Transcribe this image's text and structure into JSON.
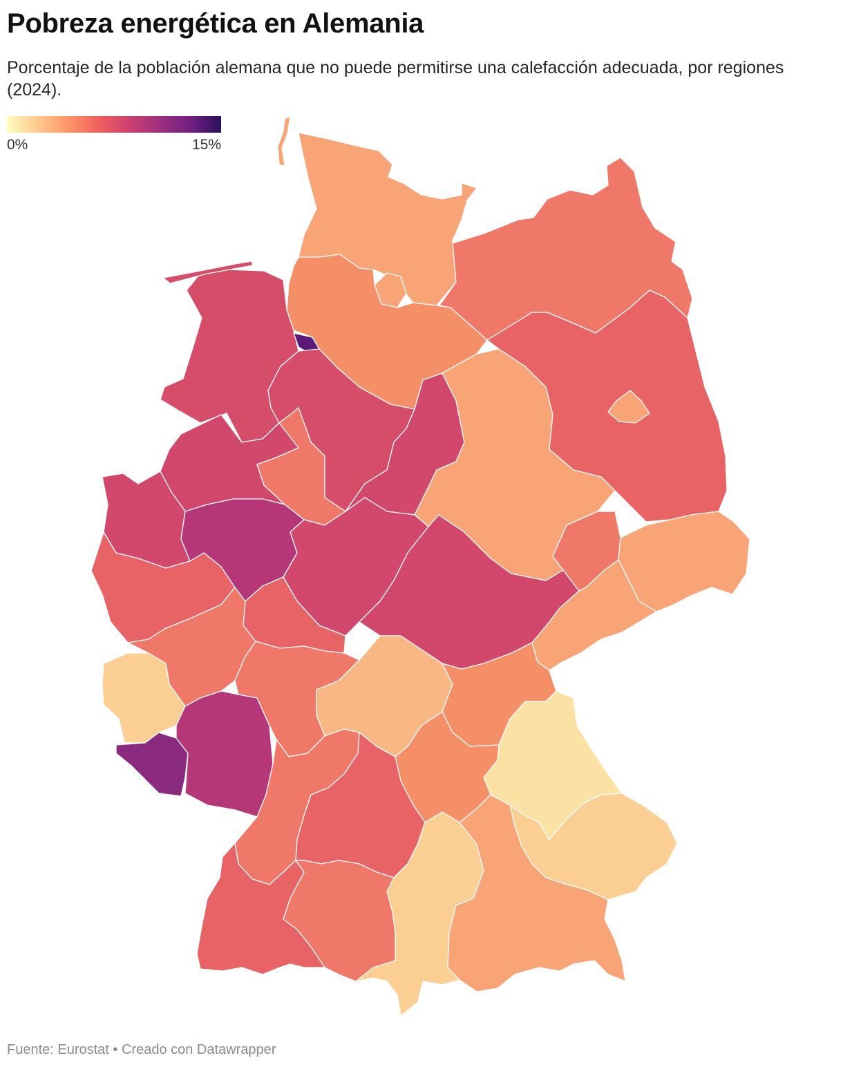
{
  "header": {
    "title": "Pobreza energética en Alemania",
    "subtitle": "Porcentaje de la población alemana que no puede permitirse una calefacción adecuada, por regiones (2024)."
  },
  "legend": {
    "min_label": "0%",
    "max_label": "15%",
    "gradient": [
      "#fcfdbf",
      "#fec98d",
      "#fd9668",
      "#f1605d",
      "#cd4071",
      "#9e2f7f",
      "#721f81",
      "#2c115f"
    ]
  },
  "footer": {
    "source": "Fuente: Eurostat • Creado con Datawrapper"
  },
  "colors": {
    "pale_yellow": "#fce1a4",
    "light_yellow": "#fbcf94",
    "light_peach": "#f9b784",
    "peach": "#f8a477",
    "orange": "#f58f68",
    "salmon": "#ef7868",
    "coral": "#e86365",
    "rose": "#d64d6a",
    "crimson": "#d1486c",
    "magenta": "#b63778",
    "purple": "#8a2b80",
    "dark_purple": "#5b1a75"
  }
}
